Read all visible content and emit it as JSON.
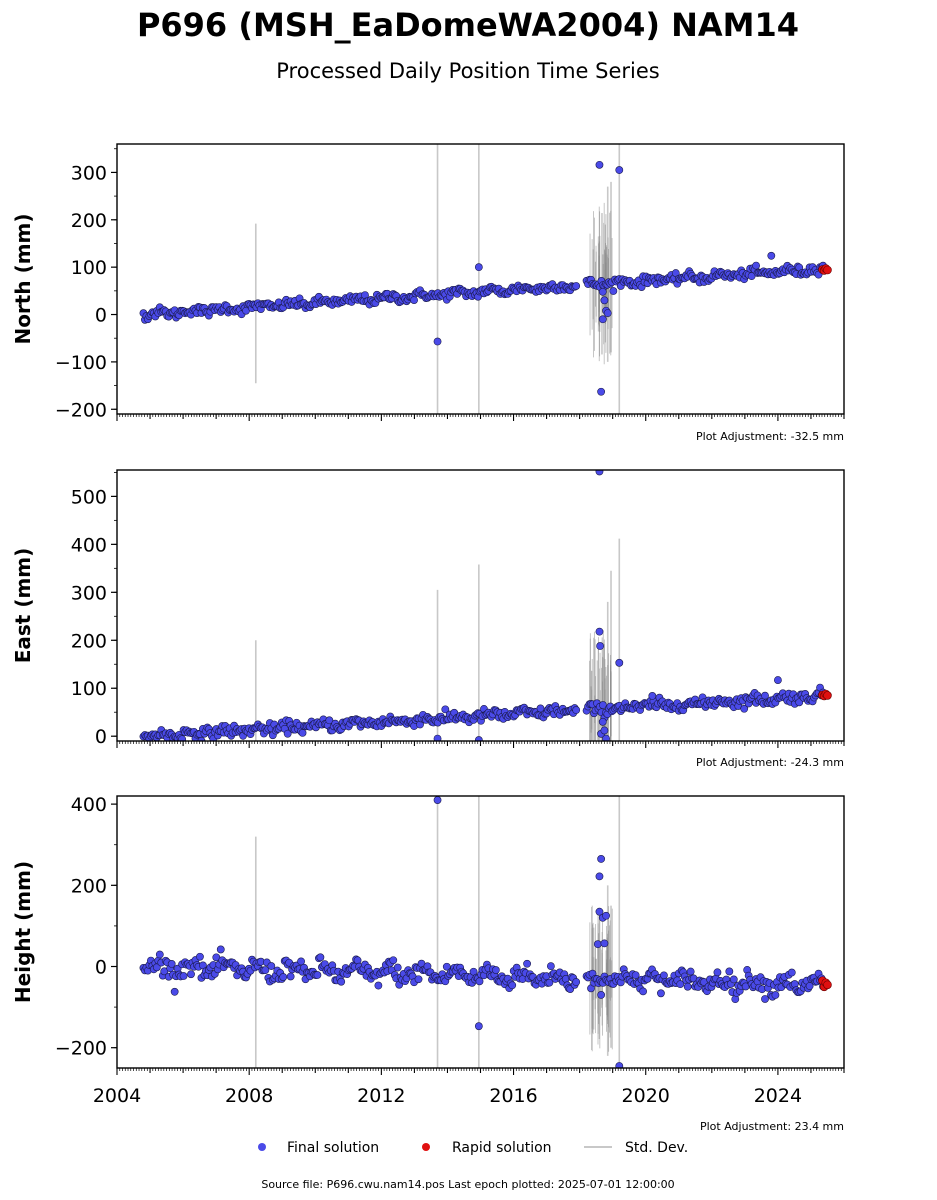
{
  "title": "P696 (MSH_EaDomeWA2004) NAM14",
  "subtitle": "Processed Daily Position Time Series",
  "colors": {
    "final": "#4a4ae8",
    "rapid": "#e01010",
    "stddev": "#c8c8c8",
    "edge": "#1a1a4a"
  },
  "legend": {
    "final": "Final solution",
    "rapid": "Rapid solution",
    "stddev": "Std. Dev."
  },
  "source": "Source file: P696.cwu.nam14.pos  Last epoch plotted: 2025-07-01 12:00:00",
  "chart_data": [
    {
      "type": "scatter",
      "ylabel": "North (mm)",
      "adjustment": "Plot Adjustment: -32.5 mm",
      "xlim": [
        2004.0,
        2026.0
      ],
      "ylim": [
        -210,
        360
      ],
      "yticks": [
        -200,
        -100,
        0,
        100,
        200,
        300
      ],
      "xticks": [
        2004,
        2008,
        2012,
        2016,
        2020,
        2024
      ],
      "trend": {
        "start": [
          2004.8,
          0
        ],
        "end": [
          2025.5,
          97
        ],
        "noise": 5
      },
      "outliers": [
        [
          2013.7,
          -57
        ],
        [
          2014.95,
          100
        ],
        [
          2018.6,
          316
        ],
        [
          2018.65,
          -163
        ],
        [
          2018.7,
          -10
        ],
        [
          2018.8,
          8
        ],
        [
          2018.85,
          3
        ],
        [
          2018.75,
          30
        ],
        [
          2018.7,
          48
        ],
        [
          2019.2,
          305
        ],
        [
          2023.8,
          124
        ]
      ],
      "stddev_bars": [
        [
          2008.2,
          -145,
          192
        ],
        [
          2013.7,
          -210,
          360
        ],
        [
          2014.95,
          -210,
          360
        ],
        [
          2019.2,
          -210,
          360
        ],
        [
          2018.95,
          -80,
          280
        ],
        [
          2018.85,
          -100,
          270
        ]
      ],
      "rapid": [
        [
          2025.35,
          95
        ],
        [
          2025.4,
          93
        ],
        [
          2025.45,
          97
        ],
        [
          2025.5,
          94
        ]
      ]
    },
    {
      "type": "scatter",
      "ylabel": "East (mm)",
      "adjustment": "Plot Adjustment: -24.3 mm",
      "xlim": [
        2004.0,
        2026.0
      ],
      "ylim": [
        -10,
        555
      ],
      "yticks": [
        0,
        100,
        200,
        300,
        400,
        500
      ],
      "xticks": [
        2004,
        2008,
        2012,
        2016,
        2020,
        2024
      ],
      "trend": {
        "start": [
          2004.8,
          0
        ],
        "end": [
          2025.5,
          85
        ],
        "noise": 6
      },
      "outliers": [
        [
          2013.7,
          -5
        ],
        [
          2014.95,
          -8
        ],
        [
          2018.6,
          552
        ],
        [
          2018.6,
          218
        ],
        [
          2018.62,
          188
        ],
        [
          2018.7,
          30
        ],
        [
          2018.65,
          5
        ],
        [
          2018.75,
          12
        ],
        [
          2018.8,
          -5
        ],
        [
          2019.2,
          153
        ],
        [
          2020.2,
          84
        ],
        [
          2024.0,
          117
        ]
      ],
      "stddev_bars": [
        [
          2008.2,
          -10,
          200
        ],
        [
          2013.7,
          -10,
          305
        ],
        [
          2014.95,
          -10,
          358
        ],
        [
          2019.2,
          -10,
          412
        ],
        [
          2018.95,
          0,
          345
        ],
        [
          2018.85,
          -10,
          280
        ]
      ],
      "rapid": [
        [
          2025.35,
          86
        ],
        [
          2025.4,
          84
        ],
        [
          2025.45,
          88
        ],
        [
          2025.5,
          85
        ]
      ]
    },
    {
      "type": "scatter",
      "ylabel": "Height (mm)",
      "adjustment": "Plot Adjustment: 23.4 mm",
      "xlim": [
        2004.0,
        2026.0
      ],
      "ylim": [
        -250,
        420
      ],
      "yticks": [
        -200,
        0,
        200,
        400
      ],
      "xticks": [
        2004,
        2008,
        2012,
        2016,
        2020,
        2024
      ],
      "trend": {
        "start": [
          2004.8,
          0
        ],
        "end": [
          2025.5,
          -45
        ],
        "noise": 12
      },
      "outliers": [
        [
          2013.7,
          410
        ],
        [
          2014.95,
          -147
        ],
        [
          2018.65,
          265
        ],
        [
          2018.6,
          222
        ],
        [
          2018.6,
          135
        ],
        [
          2018.7,
          120
        ],
        [
          2018.8,
          125
        ],
        [
          2018.55,
          55
        ],
        [
          2018.75,
          57
        ],
        [
          2018.65,
          -70
        ],
        [
          2019.2,
          -245
        ]
      ],
      "stddev_bars": [
        [
          2008.2,
          -250,
          320
        ],
        [
          2013.7,
          -250,
          420
        ],
        [
          2014.95,
          -250,
          420
        ],
        [
          2019.2,
          -250,
          420
        ],
        [
          2018.95,
          -200,
          150
        ],
        [
          2018.85,
          -220,
          200
        ]
      ],
      "rapid": [
        [
          2025.35,
          -35
        ],
        [
          2025.4,
          -50
        ],
        [
          2025.45,
          -40
        ],
        [
          2025.5,
          -45
        ]
      ]
    }
  ]
}
